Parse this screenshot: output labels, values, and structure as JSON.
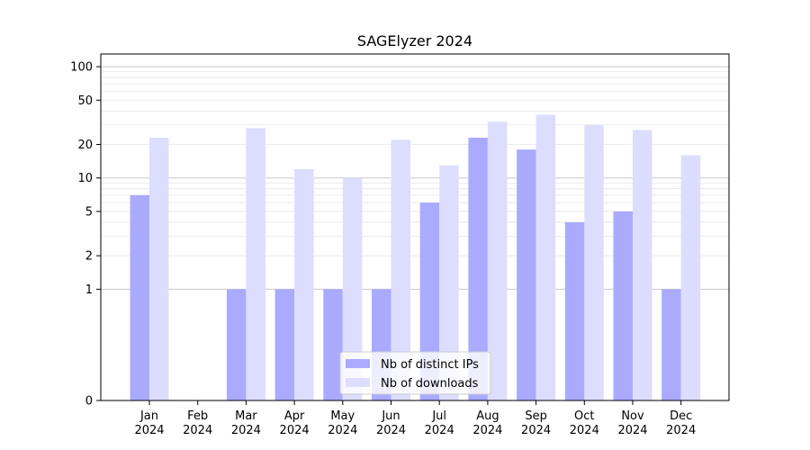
{
  "chart_data": {
    "type": "bar",
    "title": "SAGElyzer 2024",
    "xlabel": "",
    "ylabel": "",
    "y_scale": "symlog",
    "ylim": [
      0,
      130
    ],
    "y_ticks": [
      0,
      1,
      2,
      5,
      10,
      20,
      50,
      100
    ],
    "categories": [
      "Jan\n2024",
      "Feb\n2024",
      "Mar\n2024",
      "Apr\n2024",
      "May\n2024",
      "Jun\n2024",
      "Jul\n2024",
      "Aug\n2024",
      "Sep\n2024",
      "Oct\n2024",
      "Nov\n2024",
      "Dec\n2024"
    ],
    "series": [
      {
        "name": "Nb of distinct IPs",
        "color": "#aaaaff",
        "values": [
          7,
          0,
          1,
          1,
          1,
          1,
          6,
          23,
          18,
          4,
          5,
          1
        ]
      },
      {
        "name": "Nb of downloads",
        "color": "#ddddff",
        "values": [
          23,
          0,
          28,
          12,
          10,
          22,
          13,
          32,
          37,
          30,
          27,
          16
        ]
      }
    ],
    "legend_position": "bottom-center",
    "grid": "horizontal"
  }
}
